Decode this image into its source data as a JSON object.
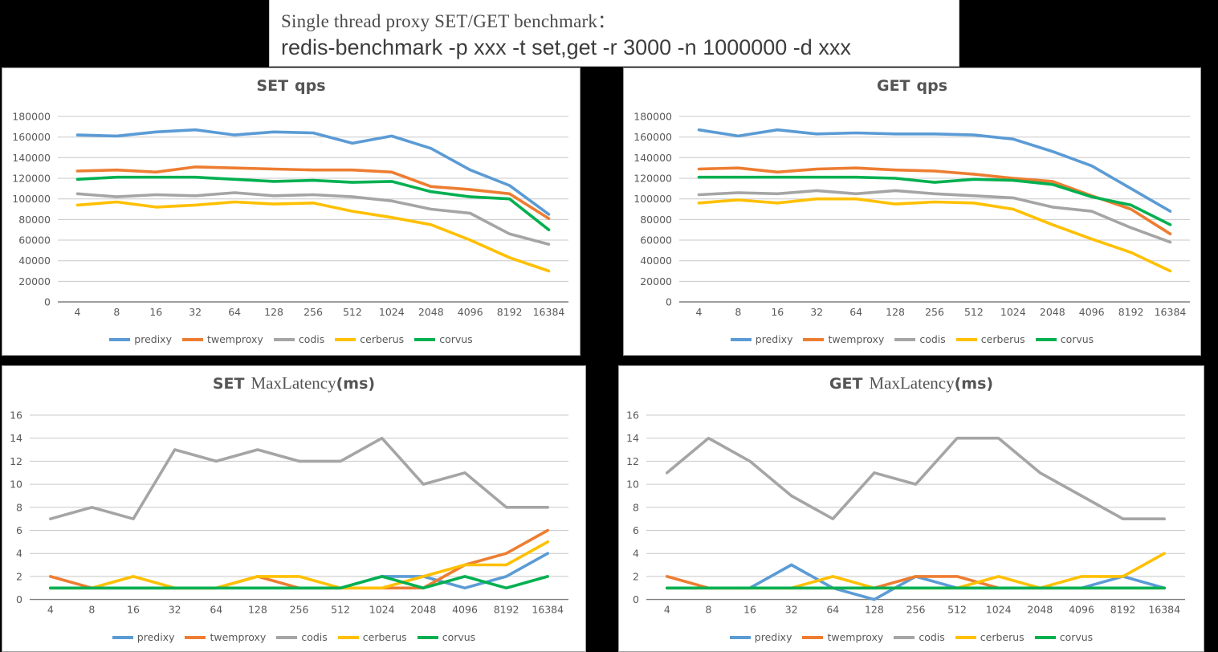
{
  "page": {
    "background_color": "#000000",
    "panel_color": "#ffffff"
  },
  "header": {
    "line1": "Single thread proxy SET/GET benchmark：",
    "line2": "redis-benchmark -p xxx -t set,get -r 3000 -n 1000000 -d xxx"
  },
  "colors": {
    "predixy": "#5B9BD5",
    "twemproxy": "#ED7D31",
    "codis": "#A5A5A5",
    "cerberus": "#FFC000",
    "corvus": "#00B050",
    "grid": "#C9C9C9",
    "axis": "#7F7F7F",
    "text": "#595959"
  },
  "chart_data": [
    {
      "id": "set-qps",
      "type": "line",
      "title": "SET qps",
      "title_parts": {
        "bold_prefix": "SET",
        "serif_mid": "",
        "bold_suffix": "qps"
      },
      "xlabel": "",
      "ylabel": "",
      "ylim": [
        0,
        180000
      ],
      "ystep": 20000,
      "grid": true,
      "legend_position": "bottom",
      "categories": [
        4,
        8,
        16,
        32,
        64,
        128,
        256,
        512,
        1024,
        2048,
        4096,
        8192,
        16384
      ],
      "series": [
        {
          "name": "predixy",
          "color": "#5B9BD5",
          "values": [
            162000,
            161000,
            165000,
            167000,
            162000,
            165000,
            164000,
            154000,
            161000,
            149000,
            128000,
            113000,
            85000
          ]
        },
        {
          "name": "twemproxy",
          "color": "#ED7D31",
          "values": [
            127000,
            128000,
            126000,
            131000,
            130000,
            129000,
            128000,
            128000,
            126000,
            112000,
            109000,
            105000,
            81000
          ]
        },
        {
          "name": "codis",
          "color": "#A5A5A5",
          "values": [
            105000,
            102000,
            104000,
            103000,
            106000,
            103000,
            104000,
            102000,
            98000,
            90000,
            86000,
            66000,
            56000
          ]
        },
        {
          "name": "cerberus",
          "color": "#FFC000",
          "values": [
            94000,
            97000,
            92000,
            94000,
            97000,
            95000,
            96000,
            88000,
            82000,
            75000,
            60000,
            43000,
            30000
          ]
        },
        {
          "name": "corvus",
          "color": "#00B050",
          "values": [
            119000,
            121000,
            121000,
            121000,
            119000,
            117000,
            118000,
            116000,
            117000,
            107000,
            102000,
            100000,
            70000
          ]
        }
      ]
    },
    {
      "id": "get-qps",
      "type": "line",
      "title": "GET qps",
      "title_parts": {
        "bold_prefix": "GET",
        "serif_mid": "",
        "bold_suffix": "qps"
      },
      "xlabel": "",
      "ylabel": "",
      "ylim": [
        0,
        180000
      ],
      "ystep": 20000,
      "grid": true,
      "legend_position": "bottom",
      "categories": [
        4,
        8,
        16,
        32,
        64,
        128,
        256,
        512,
        1024,
        2048,
        4096,
        8192,
        16384
      ],
      "series": [
        {
          "name": "predixy",
          "color": "#5B9BD5",
          "values": [
            167000,
            161000,
            167000,
            163000,
            164000,
            163000,
            163000,
            162000,
            158000,
            146000,
            132000,
            110000,
            88000
          ]
        },
        {
          "name": "twemproxy",
          "color": "#ED7D31",
          "values": [
            129000,
            130000,
            126000,
            129000,
            130000,
            128000,
            127000,
            124000,
            120000,
            117000,
            103000,
            90000,
            66000
          ]
        },
        {
          "name": "codis",
          "color": "#A5A5A5",
          "values": [
            104000,
            106000,
            105000,
            108000,
            105000,
            108000,
            105000,
            103000,
            101000,
            92000,
            88000,
            72000,
            58000
          ]
        },
        {
          "name": "cerberus",
          "color": "#FFC000",
          "values": [
            96000,
            99000,
            96000,
            100000,
            100000,
            95000,
            97000,
            96000,
            90000,
            75000,
            61000,
            48000,
            30000
          ]
        },
        {
          "name": "corvus",
          "color": "#00B050",
          "values": [
            121000,
            121000,
            121000,
            121000,
            121000,
            120000,
            116000,
            119000,
            118000,
            114000,
            102000,
            94000,
            75000
          ]
        }
      ]
    },
    {
      "id": "set-maxlatency",
      "type": "line",
      "title": "SET MaxLatency(ms)",
      "title_parts": {
        "bold_prefix": "SET",
        "serif_mid": "MaxLatency",
        "bold_suffix": "(ms)"
      },
      "xlabel": "",
      "ylabel": "",
      "ylim": [
        0,
        16
      ],
      "ystep": 2,
      "grid": true,
      "legend_position": "bottom",
      "categories": [
        4,
        8,
        16,
        32,
        64,
        128,
        256,
        512,
        1024,
        2048,
        4096,
        8192,
        16384
      ],
      "series": [
        {
          "name": "predixy",
          "color": "#5B9BD5",
          "values": [
            1,
            1,
            1,
            1,
            1,
            1,
            1,
            1,
            2,
            2,
            1,
            2,
            4
          ]
        },
        {
          "name": "twemproxy",
          "color": "#ED7D31",
          "values": [
            2,
            1,
            1,
            1,
            1,
            2,
            1,
            1,
            1,
            1,
            3,
            4,
            6
          ]
        },
        {
          "name": "codis",
          "color": "#A5A5A5",
          "values": [
            7,
            8,
            7,
            13,
            12,
            13,
            12,
            12,
            14,
            10,
            11,
            8,
            8
          ]
        },
        {
          "name": "cerberus",
          "color": "#FFC000",
          "values": [
            1,
            1,
            2,
            1,
            1,
            2,
            2,
            1,
            1,
            2,
            3,
            3,
            5
          ]
        },
        {
          "name": "corvus",
          "color": "#00B050",
          "values": [
            1,
            1,
            1,
            1,
            1,
            1,
            1,
            1,
            2,
            1,
            2,
            1,
            2
          ]
        }
      ]
    },
    {
      "id": "get-maxlatency",
      "type": "line",
      "title": "GET MaxLatency(ms)",
      "title_parts": {
        "bold_prefix": "GET",
        "serif_mid": "MaxLatency",
        "bold_suffix": "(ms)"
      },
      "xlabel": "",
      "ylabel": "",
      "ylim": [
        0,
        16
      ],
      "ystep": 2,
      "grid": true,
      "legend_position": "bottom",
      "categories": [
        4,
        8,
        16,
        32,
        64,
        128,
        256,
        512,
        1024,
        2048,
        4096,
        8192,
        16384
      ],
      "series": [
        {
          "name": "predixy",
          "color": "#5B9BD5",
          "values": [
            1,
            1,
            1,
            3,
            1,
            0,
            2,
            1,
            1,
            1,
            1,
            2,
            1
          ]
        },
        {
          "name": "twemproxy",
          "color": "#ED7D31",
          "values": [
            2,
            1,
            1,
            1,
            1,
            1,
            2,
            2,
            1,
            1,
            1,
            1,
            1
          ]
        },
        {
          "name": "codis",
          "color": "#A5A5A5",
          "values": [
            11,
            14,
            12,
            9,
            7,
            11,
            10,
            14,
            14,
            11,
            9,
            7,
            7
          ]
        },
        {
          "name": "cerberus",
          "color": "#FFC000",
          "values": [
            1,
            1,
            1,
            1,
            2,
            1,
            1,
            1,
            2,
            1,
            2,
            2,
            4
          ]
        },
        {
          "name": "corvus",
          "color": "#00B050",
          "values": [
            1,
            1,
            1,
            1,
            1,
            1,
            1,
            1,
            1,
            1,
            1,
            1,
            1
          ]
        }
      ]
    }
  ]
}
